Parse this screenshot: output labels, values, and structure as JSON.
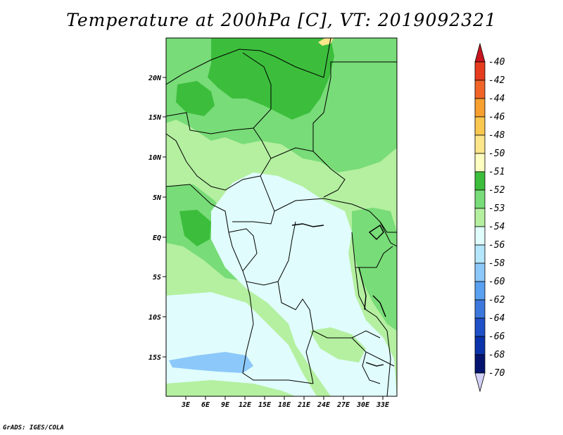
{
  "title": "Temperature at 200hPa [C], VT: 2019092321",
  "credit": "GrADS: IGES/COLA",
  "map": {
    "lat_ticks": [
      "20N",
      "15N",
      "10N",
      "5N",
      "EQ",
      "5S",
      "10S",
      "15S"
    ],
    "lon_ticks": [
      "3E",
      "6E",
      "9E",
      "12E",
      "15E",
      "18E",
      "21E",
      "24E",
      "27E",
      "30E",
      "33E"
    ]
  },
  "colorbar": {
    "labels": [
      "-40",
      "-42",
      "-44",
      "-46",
      "-48",
      "-50",
      "-51",
      "-52",
      "-53",
      "-54",
      "-56",
      "-58",
      "-60",
      "-62",
      "-64",
      "-66",
      "-68",
      "-70"
    ],
    "colors": [
      "#c8141e",
      "#e63c1e",
      "#f06428",
      "#f8a030",
      "#fac850",
      "#fde68a",
      "#fefec0",
      "#3cbe3c",
      "#78dc78",
      "#b4f0a0",
      "#e0fcfc",
      "#b4e6fc",
      "#8cc8fa",
      "#5aa0f0",
      "#3c78dc",
      "#1e50c8",
      "#0a32aa",
      "#04146e",
      "#d2d2f8"
    ]
  },
  "colors": {
    "green_dark": "#3cbe3c",
    "green_mid": "#78dc78",
    "green_light": "#b4f0a0",
    "cyan_pale": "#e0fcfc",
    "blue_pale": "#b4e6fc",
    "blue_light": "#8cc8fa",
    "yellow_pale": "#fde68a"
  }
}
